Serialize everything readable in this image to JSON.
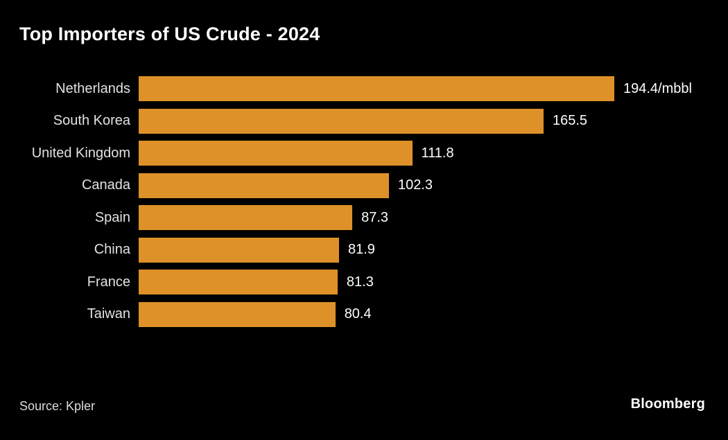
{
  "title": "Top Importers of US Crude - 2024",
  "source_note": "Source: Kpler",
  "brand": "Bloomberg",
  "colors": {
    "background": "#000000",
    "bar": "#DE9129",
    "title_text": "#FFFFFF",
    "label_text": "#E2E2E2",
    "value_text": "#FFFFFF"
  },
  "chart_data": {
    "type": "bar",
    "orientation": "horizontal",
    "title": "Top Importers of US Crude - 2024",
    "categories": [
      "Netherlands",
      "South Korea",
      "United Kingdom",
      "Canada",
      "Spain",
      "China",
      "France",
      "Taiwan"
    ],
    "values": [
      194.4,
      165.5,
      111.8,
      102.3,
      87.3,
      81.9,
      81.3,
      80.4
    ],
    "value_labels": [
      "194.4/mbbl",
      "165.5",
      "111.8",
      "102.3",
      "87.3",
      "81.9",
      "81.3",
      "80.4"
    ],
    "unit": "/mbbl",
    "xlim": [
      0,
      194.4
    ],
    "grid": false,
    "legend": false,
    "bar_color": "#DE9129"
  }
}
